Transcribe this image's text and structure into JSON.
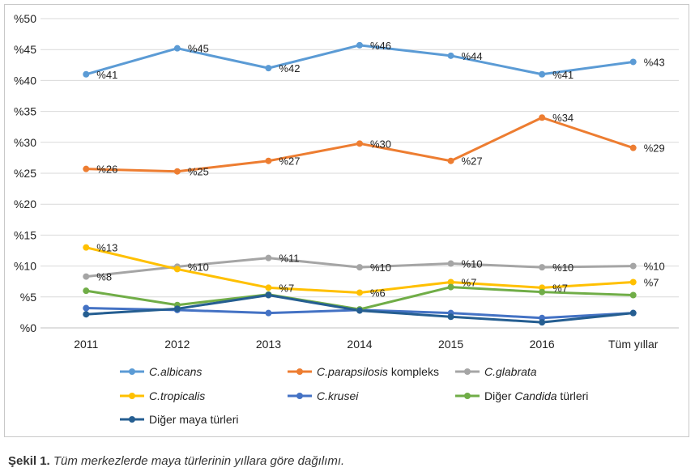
{
  "chart_data": {
    "type": "line",
    "x": [
      "2011",
      "2012",
      "2013",
      "2014",
      "2015",
      "2016",
      "Tüm yıllar"
    ],
    "ylim": [
      0,
      50
    ],
    "yticks": [
      "%0",
      "%5",
      "%10",
      "%15",
      "%20",
      "%25",
      "%30",
      "%35",
      "%40",
      "%45",
      "%50"
    ],
    "grid": true,
    "legend_position": "bottom",
    "series": [
      {
        "name": "C.albicans",
        "name_parts": [
          {
            "t": "C.albicans",
            "i": true
          }
        ],
        "color": "#5b9bd5",
        "values": [
          41,
          45.2,
          42,
          45.7,
          44,
          41,
          43
        ],
        "labels": [
          "%41",
          "%45",
          "%42",
          "%46",
          "%44",
          "%41",
          "%43"
        ]
      },
      {
        "name": "C.parapsilosis kompleks",
        "name_parts": [
          {
            "t": "C.parapsilosis",
            "i": true
          },
          {
            "t": " kompleks",
            "i": false
          }
        ],
        "color": "#ed7d31",
        "values": [
          25.7,
          25.3,
          27,
          29.8,
          27,
          34,
          29.1
        ],
        "labels": [
          "%26",
          "%25",
          "%27",
          "%30",
          "%27",
          "%34",
          "%29"
        ]
      },
      {
        "name": "C.glabrata",
        "name_parts": [
          {
            "t": "C.glabrata",
            "i": true
          }
        ],
        "color": "#a5a5a5",
        "values": [
          8.3,
          9.9,
          11.3,
          9.8,
          10.4,
          9.8,
          10
        ],
        "labels": [
          "%8",
          "%10",
          "%11",
          "%10",
          "%10",
          "%10",
          "%10"
        ]
      },
      {
        "name": "C.tropicalis",
        "name_parts": [
          {
            "t": "C.tropicalis",
            "i": true
          }
        ],
        "color": "#ffc000",
        "values": [
          13,
          9.5,
          6.5,
          5.7,
          7.4,
          6.5,
          7.4
        ],
        "labels": [
          "%13",
          "",
          "%7",
          "%6",
          "%7",
          "%7",
          "%7"
        ]
      },
      {
        "name": "C.krusei",
        "name_parts": [
          {
            "t": "C.krusei",
            "i": true
          }
        ],
        "color": "#4472c4",
        "values": [
          3.2,
          2.9,
          2.4,
          2.9,
          2.4,
          1.6,
          2.4
        ],
        "labels": [
          "",
          "",
          "",
          "",
          "",
          "",
          ""
        ]
      },
      {
        "name": "Diğer Candida türleri",
        "name_parts": [
          {
            "t": "Diğer ",
            "i": false
          },
          {
            "t": "Candida",
            "i": true
          },
          {
            "t": " türleri",
            "i": false
          }
        ],
        "color": "#70ad47",
        "values": [
          6,
          3.7,
          5.4,
          3,
          6.6,
          5.8,
          5.3
        ],
        "labels": [
          "",
          "",
          "",
          "",
          "",
          "",
          ""
        ]
      },
      {
        "name": "Diğer maya türleri",
        "name_parts": [
          {
            "t": "Diğer maya türleri",
            "i": false
          }
        ],
        "color": "#255e91",
        "values": [
          2.2,
          3.1,
          5.3,
          2.8,
          1.8,
          0.9,
          2.4
        ],
        "labels": [
          "",
          "",
          "",
          "",
          "",
          "",
          ""
        ]
      }
    ]
  },
  "caption": {
    "label": "Şekil 1.",
    "text": " Tüm merkezlerde maya türlerinin yıllara göre dağılımı."
  }
}
